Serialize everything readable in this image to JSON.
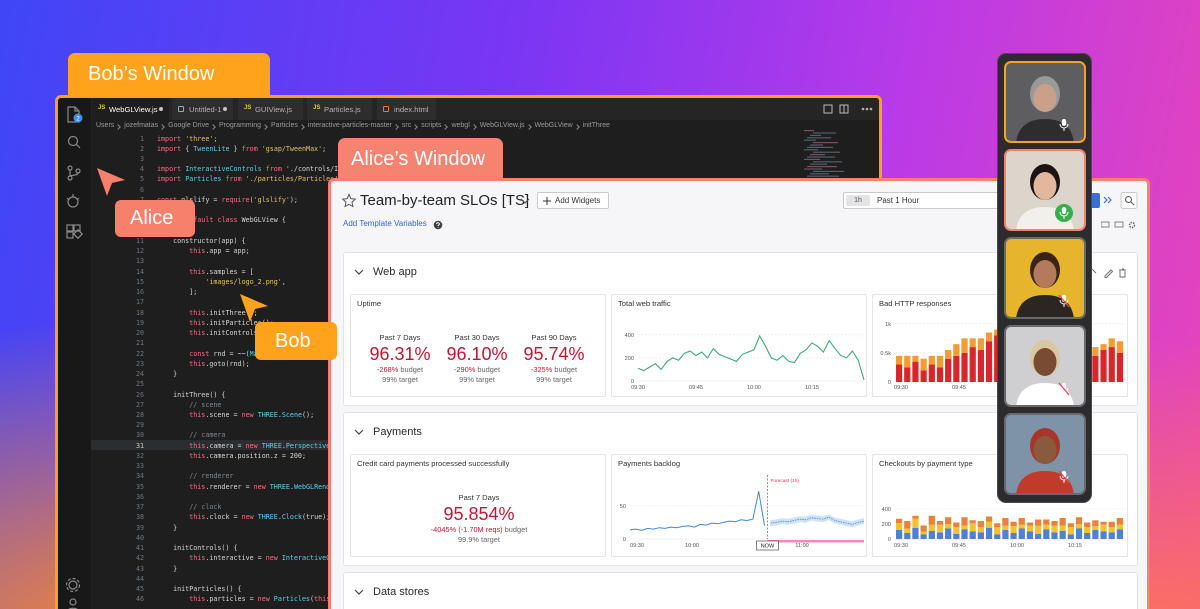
{
  "bob_window": {
    "label": "Bob’s Window",
    "badge": "2",
    "tabs": [
      {
        "icon": "JS",
        "name": "WebGLView.js",
        "modified": true
      },
      {
        "name": "Untitled-1",
        "modified": true
      },
      {
        "icon": "JS",
        "name": "GUIView.js"
      },
      {
        "icon": "JS",
        "name": "Particles.js"
      },
      {
        "name": "index.html"
      }
    ],
    "breadcrumb": [
      "Users",
      "jozefmatas",
      "Google Drive",
      "Programming",
      "Particles",
      "interactive-particles-master",
      "src",
      "scripts",
      "webgl",
      "WebGLView.js",
      "WebGLView",
      "initThree"
    ],
    "code": [
      {
        "n": 1,
        "text": "import 'three';"
      },
      {
        "n": 2,
        "text": "import { TweenLite } from 'gsap/TweenMax';"
      },
      {
        "n": 3,
        "text": ""
      },
      {
        "n": 4,
        "text": "import InteractiveControls from './controls/Interact"
      },
      {
        "n": 5,
        "text": "import Particles from './particles/Particles';"
      },
      {
        "n": 6,
        "text": ""
      },
      {
        "n": 7,
        "text": "const glslify = require('glslify');"
      },
      {
        "n": 8,
        "text": ""
      },
      {
        "n": 9,
        "text": "export default class WebGLView {"
      },
      {
        "n": 10,
        "text": ""
      },
      {
        "n": 11,
        "text": "    constructor(app) {"
      },
      {
        "n": 12,
        "text": "        this.app = app;"
      },
      {
        "n": 13,
        "text": ""
      },
      {
        "n": 14,
        "text": "        this.samples = ["
      },
      {
        "n": 15,
        "text": "            'images/logo_2.png',"
      },
      {
        "n": 16,
        "text": "        ];"
      },
      {
        "n": 17,
        "text": ""
      },
      {
        "n": 18,
        "text": "        this.initThree();"
      },
      {
        "n": 19,
        "text": "        this.initParticles();"
      },
      {
        "n": 20,
        "text": "        this.initControls();"
      },
      {
        "n": 21,
        "text": ""
      },
      {
        "n": 22,
        "text": "        const rnd = ~~(Math.rand"
      },
      {
        "n": 23,
        "text": "        this.goto(rnd);"
      },
      {
        "n": 24,
        "text": "    }"
      },
      {
        "n": 25,
        "text": ""
      },
      {
        "n": 26,
        "text": "    initThree() {"
      },
      {
        "n": 27,
        "text": "        // scene"
      },
      {
        "n": 28,
        "text": "        this.scene = new THREE.Scene();"
      },
      {
        "n": 29,
        "text": ""
      },
      {
        "n": 30,
        "text": "        // camera"
      },
      {
        "n": 31,
        "text": "        this.camera = new THREE.PerspectiveCamera("
      },
      {
        "n": 32,
        "text": "        this.camera.position.z = 200;"
      },
      {
        "n": 33,
        "text": ""
      },
      {
        "n": 34,
        "text": "        // renderer"
      },
      {
        "n": 35,
        "text": "        this.renderer = new THREE.WebGLRenderer({"
      },
      {
        "n": 36,
        "text": ""
      },
      {
        "n": 37,
        "text": "        // clock"
      },
      {
        "n": 38,
        "text": "        this.clock = new THREE.Clock(true);"
      },
      {
        "n": 39,
        "text": "    }"
      },
      {
        "n": 40,
        "text": ""
      },
      {
        "n": 41,
        "text": "    initControls() {"
      },
      {
        "n": 42,
        "text": "        this.interactive = new InteractiveControls"
      },
      {
        "n": 43,
        "text": "    }"
      },
      {
        "n": 44,
        "text": ""
      },
      {
        "n": 45,
        "text": "    initParticles() {"
      },
      {
        "n": 46,
        "text": "        this.particles = new Particles(this);"
      }
    ],
    "current_line": 31,
    "cursor_label": "Bob"
  },
  "alice_cursor_label": "Alice",
  "alice_window": {
    "label": "Alice’s Window",
    "title": "Team-by-team SLOs [TS]",
    "add_widgets": "Add Widgets",
    "time_badge": "1h",
    "time_range": "Past 1 Hour",
    "template_link": "Add Template Variables",
    "sections": [
      {
        "title": "Web app",
        "widgets": [
          {
            "type": "slo",
            "title": "Uptime",
            "columns": [
              {
                "period": "Past 7 Days",
                "value": "96.31%",
                "budget": "-268%",
                "budget_word": "budget",
                "target": "99% target"
              },
              {
                "period": "Past 30 Days",
                "value": "96.10%",
                "budget": "-290%",
                "budget_word": "budget",
                "target": "99% target"
              },
              {
                "period": "Past 90 Days",
                "value": "95.74%",
                "budget": "-325%",
                "budget_word": "budget",
                "target": "99% target"
              }
            ]
          },
          {
            "type": "line",
            "title": "Total web traffic",
            "color": "#3daa78",
            "values": [
              110,
              90,
              120,
              150,
              100,
              170,
              200,
              180,
              240,
              260,
              220,
              250,
              200,
              280,
              230,
              210,
              190,
              170,
              230,
              250,
              270,
              390,
              300,
              200,
              180,
              220,
              170,
              160,
              240,
              270,
              330,
              300,
              250,
              350,
              280,
              220,
              200,
              260,
              180,
              10
            ],
            "ylim": [
              0,
              450
            ],
            "yticks": [
              0,
              200,
              400
            ],
            "xtick_labels": [
              "09:30",
              "09:45",
              "10:00",
              "10:15"
            ],
            "grid": true
          },
          {
            "type": "stacked_bar",
            "title": "Bad HTTP responses",
            "series": [
              {
                "color": "#d9262a",
                "values": [
                  300,
                  250,
                  350,
                  200,
                  300,
                  250,
                  400,
                  450,
                  500,
                  600,
                  550,
                  700,
                  800,
                  750,
                  850,
                  700,
                  650,
                  600,
                  550,
                  500,
                  450,
                  550,
                  600,
                  500,
                  450,
                  550,
                  600,
                  500
                ]
              },
              {
                "color": "#f39c34",
                "values": [
                  150,
                  200,
                  100,
                  200,
                  150,
                  200,
                  150,
                  200,
                  250,
                  150,
                  200,
                  150,
                  100,
                  150,
                  100,
                  200,
                  150,
                  200,
                  150,
                  200,
                  250,
                  150,
                  100,
                  200,
                  150,
                  100,
                  150,
                  200
                ]
              }
            ],
            "ylim": [
              0,
              1100
            ],
            "yticks": [
              0,
              {
                "value": 500,
                "label": "0.5k"
              },
              {
                "value": 1000,
                "label": "1k"
              }
            ],
            "xtick_labels": [
              "09:30",
              "09:45",
              "10:00"
            ],
            "grid": true
          }
        ]
      },
      {
        "title": "Payments",
        "widgets": [
          {
            "type": "slo",
            "title": "Credit card payments processed successfully",
            "columns": [
              {
                "period": "Past 7 Days",
                "value": "95.854%",
                "budget": "-4045% (-1.70M reqs)",
                "budget_word": "budget",
                "target": "99.9% target"
              }
            ]
          },
          {
            "type": "forecast",
            "title": "Payments backlog",
            "color": "#3b8ad6",
            "values": [
              14,
              15,
              13,
              16,
              15,
              17,
              16,
              18,
              17,
              19,
              20,
              18,
              22,
              21,
              24,
              23,
              25,
              27,
              26,
              29,
              28,
              30,
              72,
              20
            ],
            "forecast": [
              24,
              25,
              27,
              26,
              28,
              30,
              29,
              32,
              31,
              30,
              33,
              28,
              26,
              24,
              22,
              25,
              27
            ],
            "forecast_label": "Forecast (1h)",
            "now_label": "NOW",
            "ylim": [
              0,
              80
            ],
            "yticks": [
              0,
              50
            ],
            "xtick_labels": [
              "09:30",
              "10:00",
              null,
              "11:00"
            ],
            "grid": true
          },
          {
            "type": "stacked_bar",
            "title": "Checkouts by payment type",
            "series": [
              {
                "color": "#4f7fd8",
                "values": [
                  120,
                  80,
                  150,
                  60,
                  110,
                  90,
                  140,
                  70,
                  130,
                  100,
                  90,
                  150,
                  60,
                  120,
                  80,
                  140,
                  100,
                  70,
                  130,
                  90,
                  110,
                  60,
                  140,
                  80,
                  120,
                  100,
                  90,
                  130
                ]
              },
              {
                "color": "#f2c230",
                "values": [
                  90,
                  60,
                  120,
                  40,
                  80,
                  100,
                  60,
                  90,
                  50,
                  110,
                  70,
                  80,
                  100,
                  60,
                  90,
                  50,
                  80,
                  110,
                  60,
                  90,
                  70,
                  100,
                  60,
                  80,
                  50,
                  90,
                  70,
                  60
                ]
              },
              {
                "color": "#e8823a",
                "values": [
                  60,
                  100,
                  40,
                  80,
                  120,
                  50,
                  90,
                  60,
                  110,
                  40,
                  80,
                  70,
                  50,
                  100,
                  60,
                  90,
                  40,
                  80,
                  70,
                  60,
                  100,
                  50,
                  90,
                  60,
                  80,
                  40,
                  70,
                  90
                ]
              }
            ],
            "ylim": [
              0,
              520
            ],
            "yticks": [
              0,
              200,
              400
            ],
            "xtick_labels": [
              "09:30",
              "09:45",
              "10:00",
              "10:15"
            ],
            "grid": true
          }
        ]
      },
      {
        "title": "Data stores",
        "widgets": []
      }
    ]
  },
  "participants": [
    {
      "mic": "on",
      "active": "speaker"
    },
    {
      "mic": "speaking",
      "active": "alice"
    },
    {
      "mic": "muted"
    },
    {
      "mic": "muted"
    },
    {
      "mic": "muted"
    }
  ]
}
